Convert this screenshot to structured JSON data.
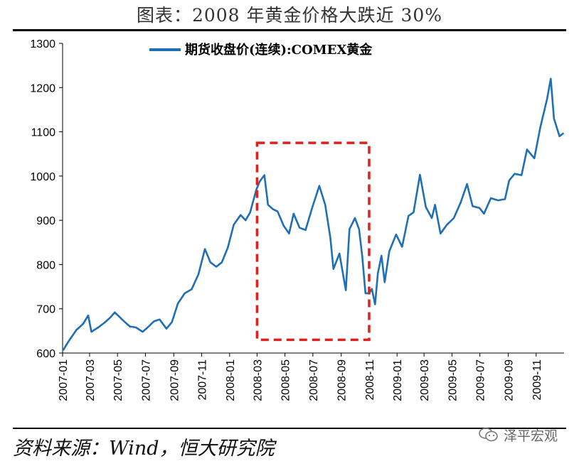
{
  "header": {
    "title": "图表：2008 年黄金价格大跌近 30%"
  },
  "footer": {
    "source": "资料来源：Wind，恒大研究院",
    "watermark": "泽平宏观"
  },
  "chart_data": {
    "type": "line",
    "x_start": "2007-01",
    "x_end": "2009-12",
    "ylim": [
      600,
      1300
    ],
    "yticks": [
      600,
      700,
      800,
      900,
      1000,
      1100,
      1200,
      1300
    ],
    "xticks": [
      "2007-01",
      "2007-03",
      "2007-05",
      "2007-07",
      "2007-09",
      "2007-11",
      "2008-01",
      "2008-03",
      "2008-05",
      "2008-07",
      "2008-09",
      "2008-11",
      "2009-01",
      "2009-03",
      "2009-05",
      "2009-07",
      "2009-09",
      "2009-11"
    ],
    "legend_position": "top-center",
    "grid": false,
    "highlight": {
      "from": "2008-03",
      "to": "2008-11",
      "ymin": 630,
      "ymax": 1075,
      "style": "dashed",
      "color": "#e0201c"
    },
    "series": [
      {
        "name": "期货收盘价(连续):COMEX黄金",
        "color": "#1f6fb6",
        "points": [
          [
            "2007-01-02",
            606
          ],
          [
            "2007-01-15",
            628
          ],
          [
            "2007-01-31",
            652
          ],
          [
            "2007-02-15",
            666
          ],
          [
            "2007-02-26",
            685
          ],
          [
            "2007-03-05",
            648
          ],
          [
            "2007-03-20",
            658
          ],
          [
            "2007-04-02",
            668
          ],
          [
            "2007-04-15",
            680
          ],
          [
            "2007-04-25",
            692
          ],
          [
            "2007-05-05",
            682
          ],
          [
            "2007-05-15",
            672
          ],
          [
            "2007-05-28",
            660
          ],
          [
            "2007-06-10",
            658
          ],
          [
            "2007-06-25",
            648
          ],
          [
            "2007-07-05",
            657
          ],
          [
            "2007-07-20",
            672
          ],
          [
            "2007-08-01",
            676
          ],
          [
            "2007-08-16",
            655
          ],
          [
            "2007-08-28",
            670
          ],
          [
            "2007-09-10",
            712
          ],
          [
            "2007-09-25",
            735
          ],
          [
            "2007-10-10",
            744
          ],
          [
            "2007-10-25",
            778
          ],
          [
            "2007-11-08",
            835
          ],
          [
            "2007-11-20",
            805
          ],
          [
            "2007-12-03",
            795
          ],
          [
            "2007-12-15",
            805
          ],
          [
            "2007-12-28",
            838
          ],
          [
            "2008-01-10",
            890
          ],
          [
            "2008-01-25",
            912
          ],
          [
            "2008-02-05",
            900
          ],
          [
            "2008-02-15",
            918
          ],
          [
            "2008-02-28",
            968
          ],
          [
            "2008-03-07",
            988
          ],
          [
            "2008-03-17",
            1002
          ],
          [
            "2008-03-25",
            935
          ],
          [
            "2008-04-05",
            925
          ],
          [
            "2008-04-15",
            920
          ],
          [
            "2008-04-28",
            888
          ],
          [
            "2008-05-10",
            870
          ],
          [
            "2008-05-20",
            915
          ],
          [
            "2008-06-02",
            883
          ],
          [
            "2008-06-15",
            878
          ],
          [
            "2008-06-30",
            930
          ],
          [
            "2008-07-15",
            978
          ],
          [
            "2008-07-28",
            935
          ],
          [
            "2008-08-08",
            862
          ],
          [
            "2008-08-15",
            790
          ],
          [
            "2008-08-28",
            825
          ],
          [
            "2008-09-11",
            742
          ],
          [
            "2008-09-19",
            880
          ],
          [
            "2008-10-01",
            905
          ],
          [
            "2008-10-10",
            880
          ],
          [
            "2008-10-17",
            818
          ],
          [
            "2008-10-24",
            735
          ],
          [
            "2008-11-01",
            735
          ],
          [
            "2008-11-07",
            745
          ],
          [
            "2008-11-14",
            710
          ],
          [
            "2008-11-20",
            780
          ],
          [
            "2008-11-28",
            820
          ],
          [
            "2008-12-05",
            760
          ],
          [
            "2008-12-15",
            830
          ],
          [
            "2008-12-30",
            868
          ],
          [
            "2009-01-12",
            840
          ],
          [
            "2009-01-26",
            910
          ],
          [
            "2009-02-06",
            918
          ],
          [
            "2009-02-20",
            1003
          ],
          [
            "2009-03-05",
            930
          ],
          [
            "2009-03-18",
            905
          ],
          [
            "2009-03-25",
            935
          ],
          [
            "2009-04-06",
            870
          ],
          [
            "2009-04-20",
            890
          ],
          [
            "2009-05-05",
            905
          ],
          [
            "2009-05-20",
            940
          ],
          [
            "2009-06-03",
            982
          ],
          [
            "2009-06-15",
            932
          ],
          [
            "2009-06-30",
            928
          ],
          [
            "2009-07-10",
            915
          ],
          [
            "2009-07-25",
            950
          ],
          [
            "2009-08-10",
            945
          ],
          [
            "2009-08-25",
            948
          ],
          [
            "2009-09-03",
            990
          ],
          [
            "2009-09-15",
            1005
          ],
          [
            "2009-09-30",
            1002
          ],
          [
            "2009-10-12",
            1060
          ],
          [
            "2009-10-28",
            1040
          ],
          [
            "2009-11-10",
            1110
          ],
          [
            "2009-11-25",
            1175
          ],
          [
            "2009-12-03",
            1220
          ],
          [
            "2009-12-10",
            1130
          ],
          [
            "2009-12-22",
            1090
          ],
          [
            "2009-12-31",
            1097
          ]
        ]
      }
    ]
  }
}
